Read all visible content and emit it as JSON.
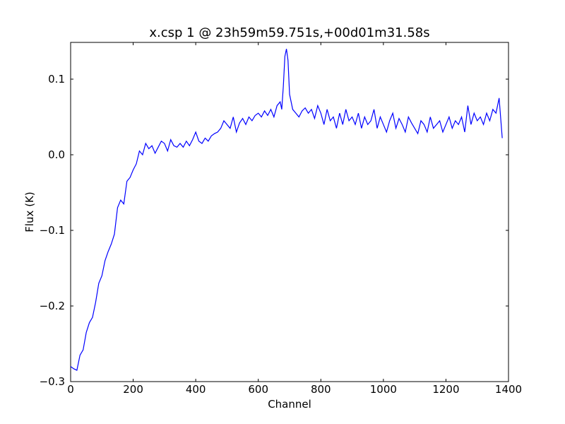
{
  "chart_data": {
    "type": "line",
    "title": "x.csp 1 @ 23h59m59.751s,+00d01m31.58s",
    "x_label": "Channel",
    "y_label": "Flux (K)",
    "xlim": [
      0,
      1400
    ],
    "ylim": [
      -0.3,
      0.1486
    ],
    "xticks": [
      0,
      200,
      400,
      600,
      800,
      1000,
      1200,
      1400
    ],
    "yticks": [
      {
        "value": -0.3,
        "label": "−0.3"
      },
      {
        "value": -0.2,
        "label": "−0.2"
      },
      {
        "value": -0.1,
        "label": "−0.1"
      },
      {
        "value": 0,
        "label": "0.0"
      },
      0.1
    ],
    "series": [
      {
        "color": "#0000ff",
        "x": [
          0,
          10,
          20,
          30,
          40,
          50,
          60,
          70,
          80,
          90,
          100,
          110,
          120,
          130,
          140,
          150,
          160,
          170,
          180,
          190,
          200,
          210,
          220,
          230,
          240,
          250,
          260,
          270,
          280,
          290,
          300,
          310,
          320,
          330,
          340,
          350,
          360,
          370,
          380,
          390,
          400,
          410,
          420,
          430,
          440,
          450,
          460,
          470,
          480,
          490,
          500,
          510,
          520,
          530,
          540,
          550,
          560,
          570,
          580,
          590,
          600,
          610,
          620,
          630,
          640,
          650,
          660,
          670,
          675,
          680,
          685,
          690,
          695,
          700,
          710,
          720,
          730,
          740,
          750,
          760,
          770,
          780,
          790,
          800,
          810,
          820,
          830,
          840,
          850,
          860,
          870,
          880,
          890,
          900,
          910,
          920,
          930,
          940,
          950,
          960,
          970,
          980,
          990,
          1000,
          1010,
          1020,
          1030,
          1040,
          1050,
          1060,
          1070,
          1080,
          1090,
          1100,
          1110,
          1120,
          1130,
          1140,
          1150,
          1160,
          1170,
          1180,
          1190,
          1200,
          1210,
          1220,
          1230,
          1240,
          1250,
          1260,
          1270,
          1280,
          1290,
          1300,
          1310,
          1320,
          1330,
          1340,
          1350,
          1360,
          1370,
          1380
        ],
        "values": [
          -0.28,
          -0.283,
          -0.285,
          -0.265,
          -0.258,
          -0.235,
          -0.222,
          -0.215,
          -0.195,
          -0.17,
          -0.16,
          -0.14,
          -0.128,
          -0.118,
          -0.105,
          -0.07,
          -0.06,
          -0.065,
          -0.035,
          -0.03,
          -0.02,
          -0.012,
          0.005,
          0.0,
          0.015,
          0.008,
          0.012,
          0.002,
          0.01,
          0.018,
          0.015,
          0.005,
          0.02,
          0.012,
          0.01,
          0.015,
          0.01,
          0.018,
          0.012,
          0.02,
          0.03,
          0.018,
          0.015,
          0.022,
          0.018,
          0.025,
          0.028,
          0.03,
          0.035,
          0.045,
          0.04,
          0.035,
          0.05,
          0.03,
          0.042,
          0.048,
          0.04,
          0.05,
          0.045,
          0.052,
          0.055,
          0.05,
          0.058,
          0.052,
          0.06,
          0.05,
          0.065,
          0.07,
          0.06,
          0.09,
          0.13,
          0.14,
          0.125,
          0.08,
          0.06,
          0.055,
          0.05,
          0.058,
          0.062,
          0.055,
          0.06,
          0.048,
          0.065,
          0.055,
          0.04,
          0.06,
          0.045,
          0.05,
          0.035,
          0.055,
          0.04,
          0.06,
          0.045,
          0.05,
          0.04,
          0.055,
          0.035,
          0.05,
          0.04,
          0.045,
          0.06,
          0.035,
          0.05,
          0.04,
          0.03,
          0.045,
          0.055,
          0.035,
          0.048,
          0.04,
          0.03,
          0.05,
          0.042,
          0.035,
          0.028,
          0.045,
          0.04,
          0.03,
          0.05,
          0.035,
          0.04,
          0.045,
          0.03,
          0.04,
          0.05,
          0.035,
          0.045,
          0.04,
          0.05,
          0.03,
          0.065,
          0.04,
          0.055,
          0.045,
          0.05,
          0.04,
          0.055,
          0.045,
          0.06,
          0.055,
          0.075,
          0.022
        ]
      }
    ]
  }
}
